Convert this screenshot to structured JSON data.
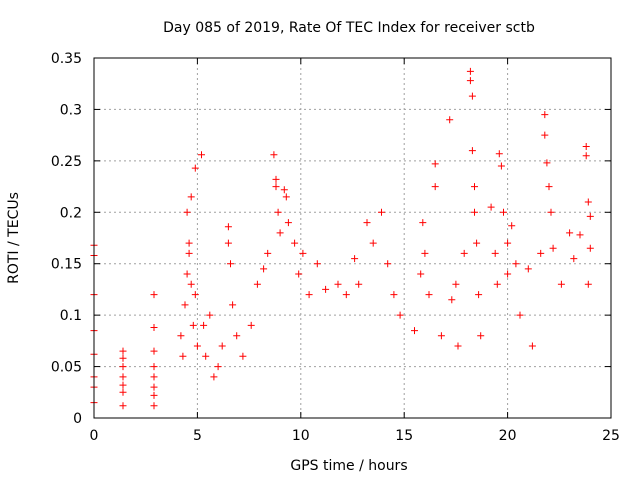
{
  "chart_data": {
    "type": "scatter",
    "title": "Day 085 of 2019, Rate Of TEC Index for receiver sctb",
    "xlabel": "GPS time / hours",
    "ylabel": "ROTI / TECUs",
    "xlim": [
      0,
      25
    ],
    "ylim": [
      0,
      0.35
    ],
    "xticks": [
      0,
      5,
      10,
      15,
      20,
      25
    ],
    "xtick_labels": [
      "0",
      "5",
      "10",
      "15",
      "20",
      "25"
    ],
    "yticks": [
      0,
      0.05,
      0.1,
      0.15,
      0.2,
      0.25,
      0.3,
      0.35
    ],
    "ytick_labels": [
      "0",
      "0.05",
      "0.1",
      "0.15",
      "0.2",
      "0.25",
      "0.3",
      "0.35"
    ],
    "grid": true,
    "marker": "+",
    "color": "#ff0000",
    "series": [
      {
        "name": "ROTI",
        "points": [
          [
            0.0,
            0.168
          ],
          [
            0.0,
            0.158
          ],
          [
            0.0,
            0.12
          ],
          [
            0.0,
            0.085
          ],
          [
            0.0,
            0.062
          ],
          [
            0.0,
            0.04
          ],
          [
            0.0,
            0.03
          ],
          [
            0.0,
            0.015
          ],
          [
            1.4,
            0.065
          ],
          [
            1.4,
            0.058
          ],
          [
            1.4,
            0.05
          ],
          [
            1.4,
            0.04
          ],
          [
            1.4,
            0.032
          ],
          [
            1.4,
            0.025
          ],
          [
            1.4,
            0.012
          ],
          [
            2.9,
            0.12
          ],
          [
            2.9,
            0.088
          ],
          [
            2.9,
            0.065
          ],
          [
            2.9,
            0.05
          ],
          [
            2.9,
            0.04
          ],
          [
            2.9,
            0.03
          ],
          [
            2.9,
            0.022
          ],
          [
            2.9,
            0.012
          ],
          [
            4.2,
            0.08
          ],
          [
            4.4,
            0.11
          ],
          [
            4.3,
            0.06
          ],
          [
            4.5,
            0.2
          ],
          [
            4.6,
            0.17
          ],
          [
            4.6,
            0.16
          ],
          [
            4.5,
            0.14
          ],
          [
            4.7,
            0.13
          ],
          [
            4.7,
            0.215
          ],
          [
            4.8,
            0.09
          ],
          [
            4.9,
            0.243
          ],
          [
            4.9,
            0.12
          ],
          [
            5.0,
            0.07
          ],
          [
            5.2,
            0.256
          ],
          [
            5.3,
            0.09
          ],
          [
            5.4,
            0.06
          ],
          [
            5.6,
            0.1
          ],
          [
            5.8,
            0.04
          ],
          [
            6.0,
            0.05
          ],
          [
            6.2,
            0.07
          ],
          [
            6.5,
            0.186
          ],
          [
            6.5,
            0.17
          ],
          [
            6.6,
            0.15
          ],
          [
            6.7,
            0.11
          ],
          [
            6.9,
            0.08
          ],
          [
            7.2,
            0.06
          ],
          [
            7.6,
            0.09
          ],
          [
            7.9,
            0.13
          ],
          [
            8.2,
            0.145
          ],
          [
            8.4,
            0.16
          ],
          [
            8.7,
            0.256
          ],
          [
            8.8,
            0.232
          ],
          [
            8.8,
            0.225
          ],
          [
            8.9,
            0.2
          ],
          [
            9.0,
            0.18
          ],
          [
            9.2,
            0.222
          ],
          [
            9.3,
            0.215
          ],
          [
            9.4,
            0.19
          ],
          [
            9.7,
            0.17
          ],
          [
            9.9,
            0.14
          ],
          [
            10.1,
            0.16
          ],
          [
            10.4,
            0.12
          ],
          [
            10.8,
            0.15
          ],
          [
            11.2,
            0.125
          ],
          [
            11.8,
            0.13
          ],
          [
            12.2,
            0.12
          ],
          [
            12.6,
            0.155
          ],
          [
            12.8,
            0.13
          ],
          [
            13.2,
            0.19
          ],
          [
            13.5,
            0.17
          ],
          [
            13.9,
            0.2
          ],
          [
            14.2,
            0.15
          ],
          [
            14.5,
            0.12
          ],
          [
            14.8,
            0.1
          ],
          [
            15.5,
            0.085
          ],
          [
            15.8,
            0.14
          ],
          [
            15.9,
            0.19
          ],
          [
            16.0,
            0.16
          ],
          [
            16.2,
            0.12
          ],
          [
            16.5,
            0.247
          ],
          [
            16.5,
            0.225
          ],
          [
            16.8,
            0.08
          ],
          [
            17.2,
            0.29
          ],
          [
            17.3,
            0.115
          ],
          [
            17.5,
            0.13
          ],
          [
            17.6,
            0.07
          ],
          [
            17.9,
            0.16
          ],
          [
            18.2,
            0.337
          ],
          [
            18.2,
            0.328
          ],
          [
            18.3,
            0.313
          ],
          [
            18.3,
            0.26
          ],
          [
            18.4,
            0.225
          ],
          [
            18.4,
            0.2
          ],
          [
            18.5,
            0.17
          ],
          [
            18.6,
            0.12
          ],
          [
            18.7,
            0.08
          ],
          [
            19.2,
            0.205
          ],
          [
            19.4,
            0.16
          ],
          [
            19.5,
            0.13
          ],
          [
            19.6,
            0.257
          ],
          [
            19.7,
            0.245
          ],
          [
            19.8,
            0.2
          ],
          [
            20.0,
            0.17
          ],
          [
            20.0,
            0.14
          ],
          [
            20.2,
            0.187
          ],
          [
            20.4,
            0.15
          ],
          [
            20.6,
            0.1
          ],
          [
            21.0,
            0.145
          ],
          [
            21.2,
            0.07
          ],
          [
            21.6,
            0.16
          ],
          [
            21.8,
            0.295
          ],
          [
            21.8,
            0.275
          ],
          [
            21.9,
            0.248
          ],
          [
            22.0,
            0.225
          ],
          [
            22.1,
            0.2
          ],
          [
            22.2,
            0.165
          ],
          [
            22.6,
            0.13
          ],
          [
            23.0,
            0.18
          ],
          [
            23.2,
            0.155
          ],
          [
            23.5,
            0.178
          ],
          [
            23.8,
            0.264
          ],
          [
            23.8,
            0.255
          ],
          [
            23.9,
            0.21
          ],
          [
            24.0,
            0.196
          ],
          [
            24.0,
            0.165
          ],
          [
            23.9,
            0.13
          ]
        ]
      }
    ]
  }
}
